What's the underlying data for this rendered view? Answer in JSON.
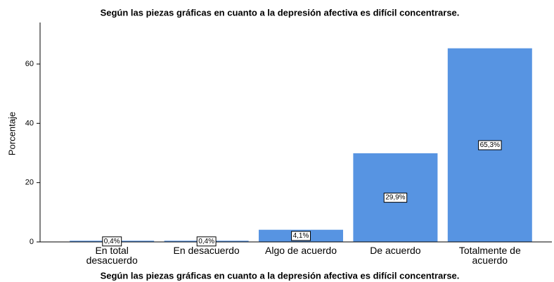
{
  "chart_data": {
    "type": "bar",
    "title": "Según las piezas gráficas en cuanto a la depresión afectiva es difícil concentrarse.",
    "x_label": "Según las piezas gráficas en cuanto a la depresión afectiva es difícil concentrarse.",
    "y_label": "Porcentaje",
    "categories": [
      "En total desacuerdo",
      "En desacuerdo",
      "Algo de acuerdo",
      "De acuerdo",
      "Totalmente de acuerdo"
    ],
    "values": [
      0.4,
      0.4,
      4.1,
      29.9,
      65.3
    ],
    "value_labels": [
      "0,4%",
      "0,4%",
      "4,1%",
      "29,9%",
      "65,3%"
    ],
    "color": "#5794e2",
    "ylim": [
      0,
      74
    ],
    "yticks": [
      0,
      20,
      40,
      60
    ],
    "grid": false
  }
}
